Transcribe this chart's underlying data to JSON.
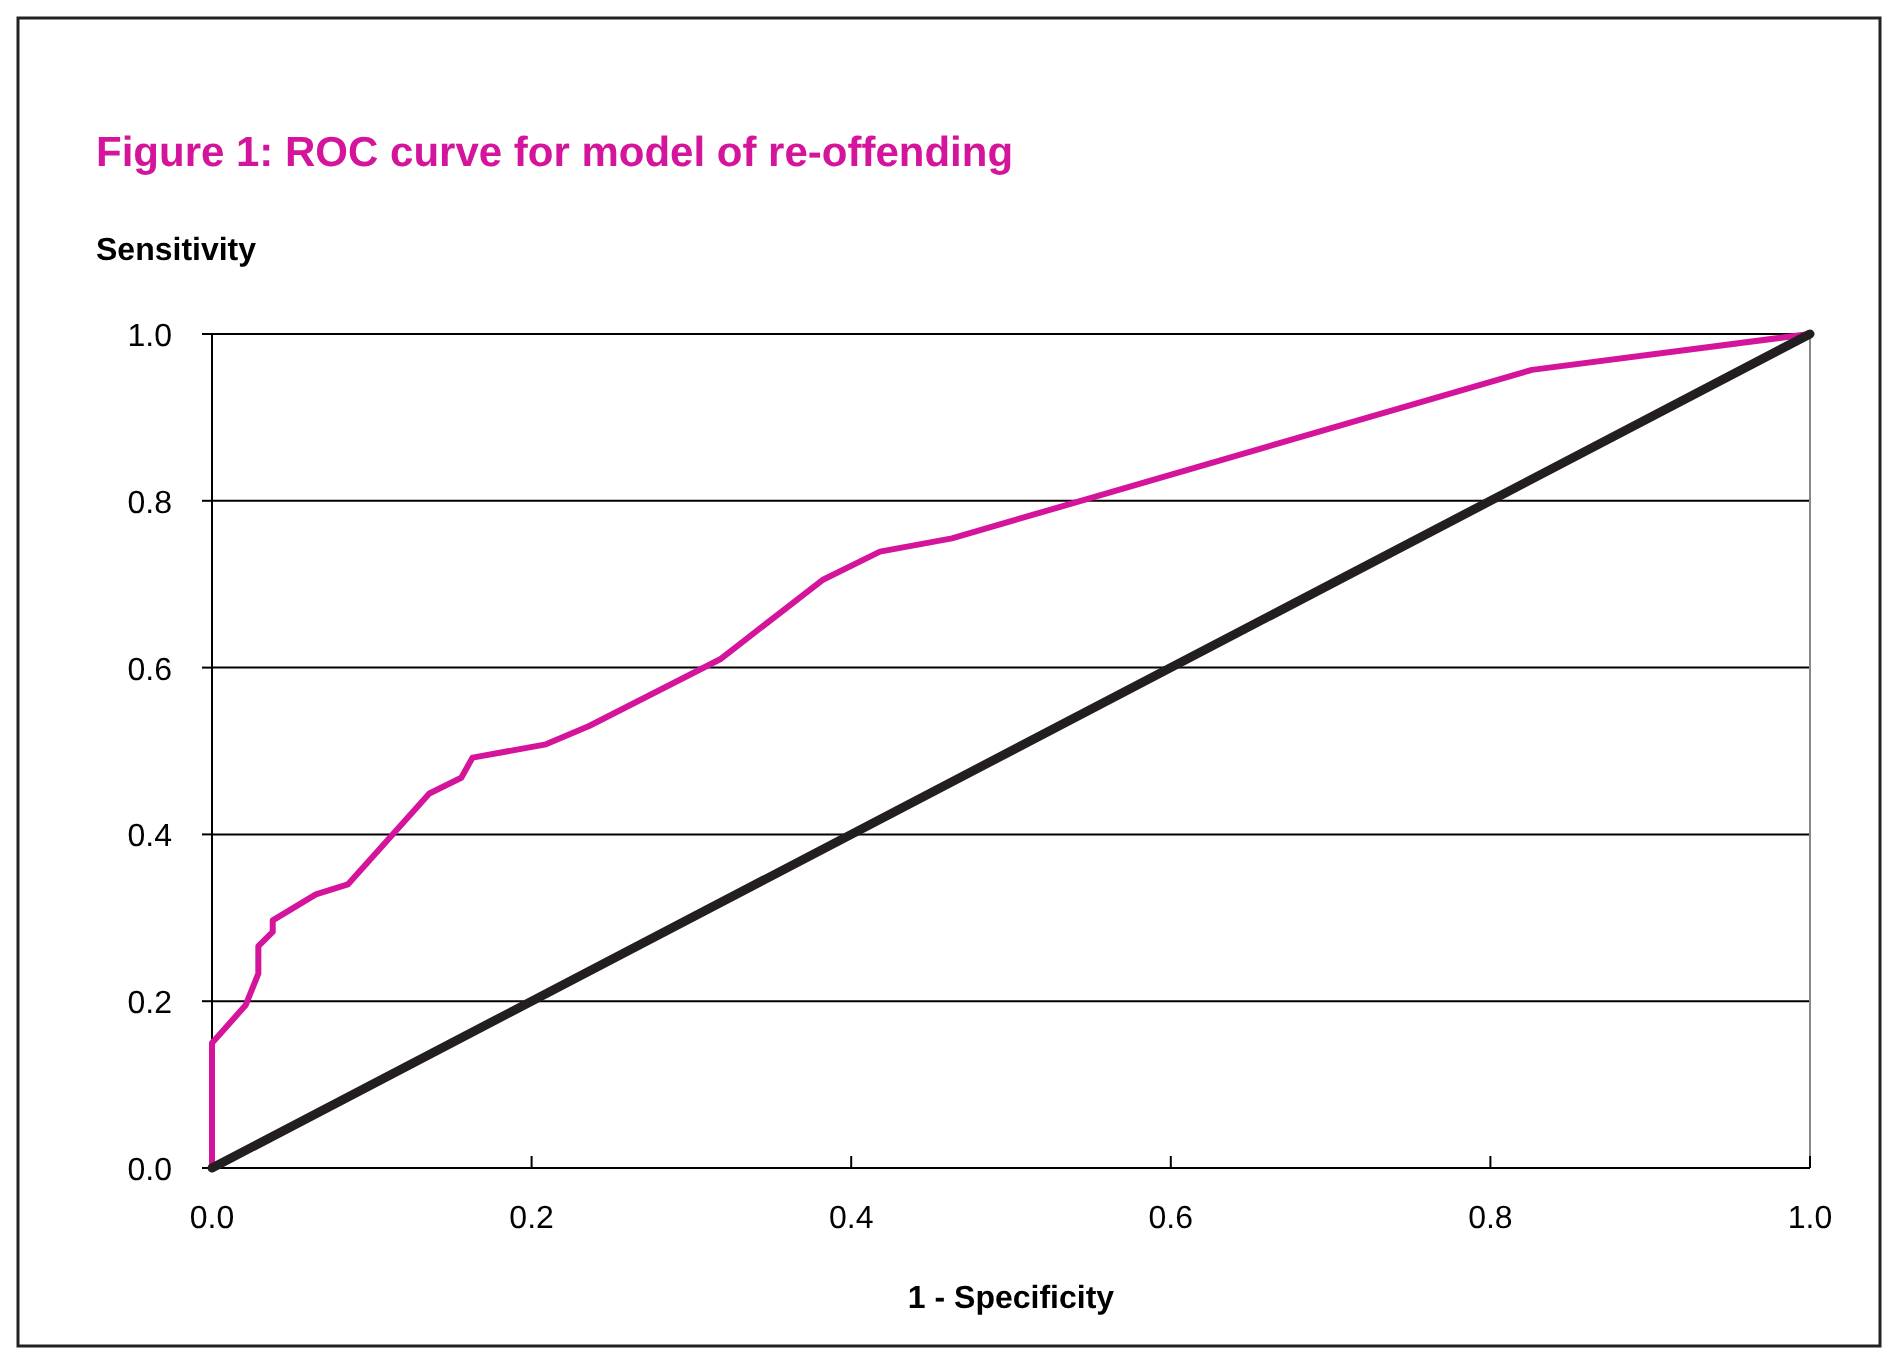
{
  "chart_data": {
    "type": "line",
    "title": "Figure 1: ROC curve for model of re-offending",
    "xlabel": "1 - Specificity",
    "ylabel": "Sensitivity",
    "xlim": [
      0,
      1
    ],
    "ylim": [
      0,
      1
    ],
    "xticks": [
      {
        "value": 0,
        "label": "0.0"
      },
      0.2,
      0.4,
      0.6,
      0.8,
      {
        "value": 1,
        "label": "1.0"
      }
    ],
    "yticks": [
      {
        "value": 0,
        "label": "0.0"
      },
      0.2,
      0.4,
      0.6,
      0.8,
      {
        "value": 1,
        "label": "1.0"
      }
    ],
    "grid": "y",
    "marker": "none",
    "line_style": "solid",
    "series": [
      {
        "color": "#d4159b",
        "x": [
          0,
          0,
          0.021,
          0.029,
          0.029,
          0.038,
          0.038,
          0.065,
          0.085,
          0.136,
          0.156,
          0.163,
          0.209,
          0.236,
          0.318,
          0.382,
          0.418,
          0.463,
          0.826,
          1
        ],
        "values": [
          0,
          0.15,
          0.195,
          0.233,
          0.266,
          0.283,
          0.297,
          0.328,
          0.34,
          0.449,
          0.468,
          0.492,
          0.508,
          0.53,
          0.61,
          0.705,
          0.739,
          0.755,
          0.957,
          1
        ]
      },
      {
        "color": "#231f20",
        "x": [
          0,
          1
        ],
        "values": [
          0,
          1
        ]
      }
    ]
  }
}
